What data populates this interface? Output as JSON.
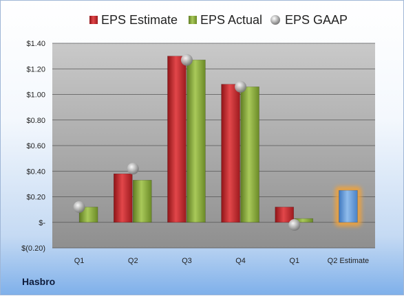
{
  "company": "Hasbro",
  "chart_data": {
    "type": "bar",
    "categories": [
      "Q1",
      "Q2",
      "Q3",
      "Q4",
      "Q1",
      "Q2 Estimate"
    ],
    "ylim": [
      -0.2,
      1.4
    ],
    "yticks": [
      -0.2,
      0,
      0.2,
      0.4,
      0.6,
      0.8,
      1.0,
      1.2,
      1.4
    ],
    "ytick_labels": [
      "$(0.20)",
      "$-",
      "$0.20",
      "$0.40",
      "$0.60",
      "$0.80",
      "$1.00",
      "$1.20",
      "$1.40"
    ],
    "grid": true,
    "legend_position": "top",
    "series": [
      {
        "name": "EPS Estimate",
        "kind": "bar",
        "color": "#c0262c",
        "values": [
          null,
          0.38,
          1.3,
          1.08,
          0.12,
          null
        ]
      },
      {
        "name": "EPS Actual",
        "kind": "bar",
        "color": "#8fb03d",
        "values": [
          0.12,
          0.33,
          1.27,
          1.06,
          0.03,
          null
        ]
      },
      {
        "name": "EPS GAAP",
        "kind": "marker",
        "color": "#a8a8a8",
        "values": [
          0.12,
          0.42,
          1.27,
          1.06,
          -0.02,
          null
        ]
      }
    ],
    "estimate_bar": {
      "category_index": 5,
      "value": 0.25,
      "color": "#6fa0d8",
      "glow": "#f0a23a"
    }
  }
}
